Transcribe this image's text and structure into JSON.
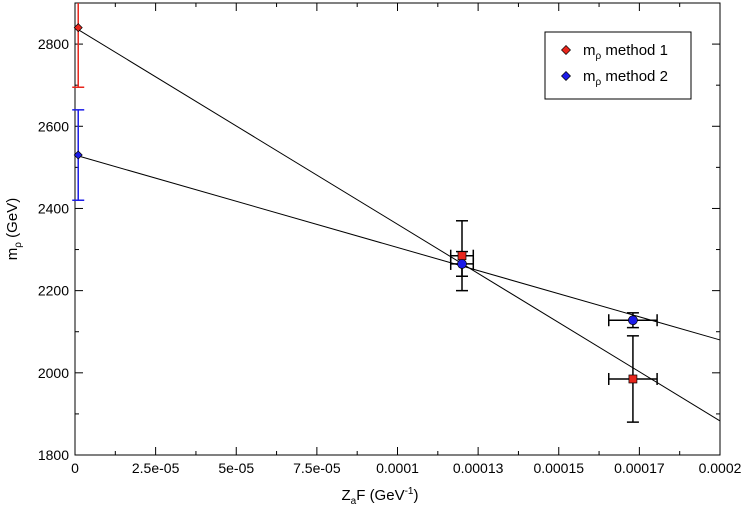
{
  "chart_data": {
    "type": "scatter",
    "xlabel": {
      "main": "Z",
      "sub": "a",
      "after": "F (GeV",
      "sup": "-1",
      "close": ")"
    },
    "ylabel": {
      "main": "m",
      "sub": "ρ",
      "after": " (GeV)"
    },
    "xlim": [
      0,
      0.0002
    ],
    "ylim": [
      1800,
      2900
    ],
    "x_ticks": [
      {
        "value": 0,
        "label": "0"
      },
      {
        "value": 2.5e-05,
        "label": "2.5e-05"
      },
      {
        "value": 5e-05,
        "label": "5e-05"
      },
      {
        "value": 7.5e-05,
        "label": "7.5e-05"
      },
      {
        "value": 0.0001,
        "label": "0.0001"
      },
      {
        "value": 0.000125,
        "label": "0.00013"
      },
      {
        "value": 0.00015,
        "label": "0.00015"
      },
      {
        "value": 0.000175,
        "label": "0.00017"
      },
      {
        "value": 0.0002,
        "label": "0.0002"
      }
    ],
    "y_ticks": [
      {
        "value": 1800,
        "label": "1800"
      },
      {
        "value": 2000,
        "label": "2000"
      },
      {
        "value": 2200,
        "label": "2200"
      },
      {
        "value": 2400,
        "label": "2400"
      },
      {
        "value": 2600,
        "label": "2600"
      },
      {
        "value": 2800,
        "label": "2800"
      }
    ],
    "legend": {
      "position": "top-right",
      "items": [
        {
          "main": "m",
          "sub": "ρ",
          "after": " method 1",
          "color": "#e8261c"
        },
        {
          "main": "m",
          "sub": "ρ",
          "after": " method 2",
          "color": "#1c1ce8"
        }
      ]
    },
    "series": [
      {
        "color": "#e8261c",
        "error_bar_color": "#e8261c",
        "points": [
          {
            "x": 1e-06,
            "y": 2840,
            "yerr": 145,
            "xerr": 0,
            "marker": "diamond",
            "bar_color": "#e8261c"
          },
          {
            "x": 0.00012,
            "y": 2285,
            "yerr": 85,
            "xerr": 3.5e-06,
            "marker": "square",
            "bar_color": "#000000"
          },
          {
            "x": 0.000173,
            "y": 1985,
            "yerr": 105,
            "xerr": 7.5e-06,
            "marker": "square",
            "bar_color": "#000000"
          }
        ],
        "fit_line": {
          "x_start": 0,
          "y_start": 2840,
          "x_end": 0.0002,
          "y_end": 1883
        }
      },
      {
        "color": "#1c1ce8",
        "points": [
          {
            "x": 1e-06,
            "y": 2530,
            "yerr": 110,
            "xerr": 0,
            "marker": "diamond",
            "bar_color": "#1c1ce8"
          },
          {
            "x": 0.00012,
            "y": 2265,
            "yerr": 30,
            "xerr": 3.5e-06,
            "marker": "circle",
            "bar_color": "#000000"
          },
          {
            "x": 0.000173,
            "y": 2128,
            "yerr": 18,
            "xerr": 7.5e-06,
            "marker": "circle",
            "bar_color": "#000000"
          }
        ],
        "fit_line": {
          "x_start": 0,
          "y_start": 2530,
          "x_end": 0.0002,
          "y_end": 2080
        }
      }
    ]
  }
}
